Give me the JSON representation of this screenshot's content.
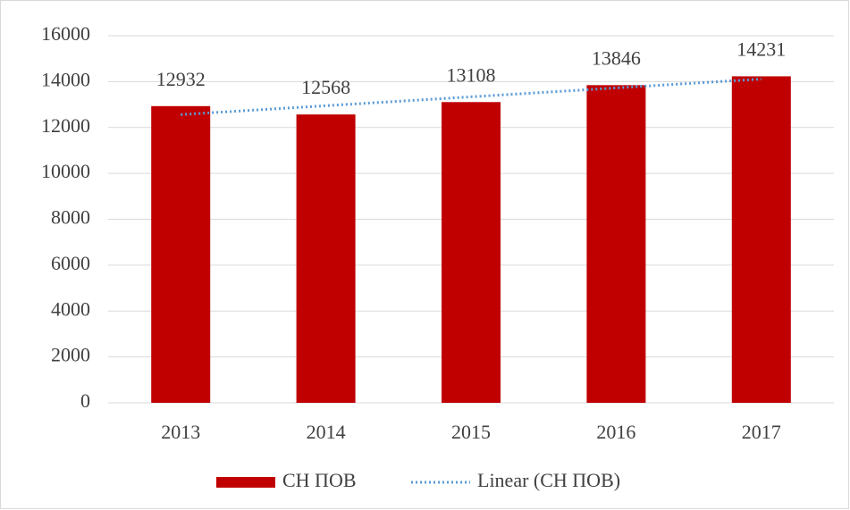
{
  "chart_data": {
    "type": "bar",
    "categories": [
      "2013",
      "2014",
      "2015",
      "2016",
      "2017"
    ],
    "series": [
      {
        "name": "СН ПОВ",
        "color": "#c00000",
        "values": [
          12932,
          12568,
          13108,
          13846,
          14231
        ]
      }
    ],
    "trendline": {
      "kind": "linear",
      "name": "Linear (СН ПОВ)",
      "color": "#5b9bd5"
    },
    "ylim": [
      0,
      16000
    ],
    "yticks": [
      0,
      2000,
      4000,
      6000,
      8000,
      10000,
      12000,
      14000,
      16000
    ],
    "grid": true,
    "legend": "bottom"
  }
}
